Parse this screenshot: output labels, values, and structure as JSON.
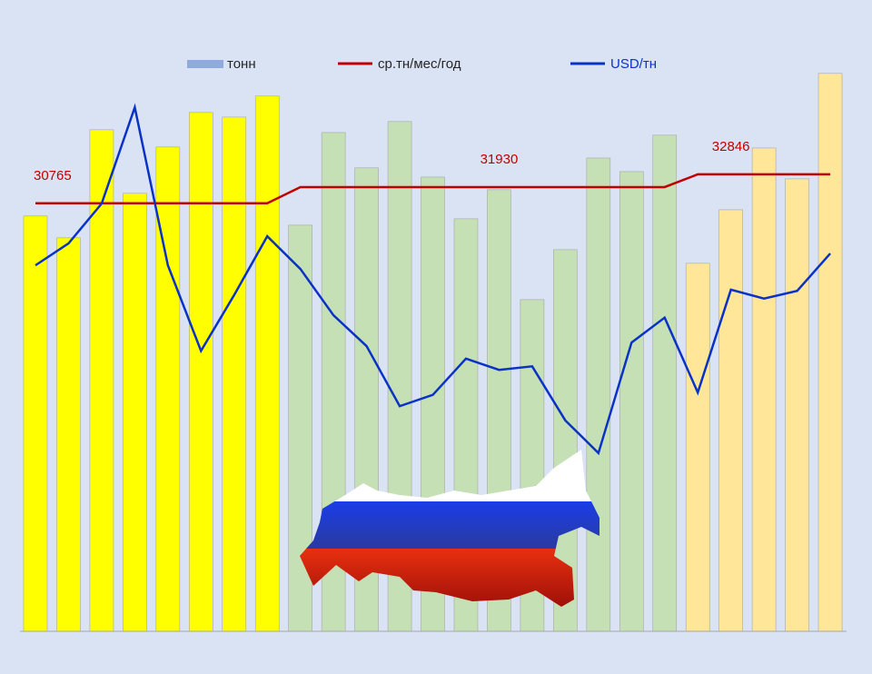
{
  "chart_data": {
    "type": "bar",
    "ylim": [
      0,
      42700
    ],
    "y2lim": [
      0,
      100
    ],
    "legend": "top",
    "series": [
      {
        "name": "тонн",
        "type": "bar",
        "color": "#8faadc",
        "colors": [
          "#ffff00",
          "#ffff00",
          "#ffff00",
          "#ffff00",
          "#ffff00",
          "#ffff00",
          "#ffff00",
          "#ffff00",
          "#c5e0b4",
          "#c5e0b4",
          "#c5e0b4",
          "#c5e0b4",
          "#c5e0b4",
          "#c5e0b4",
          "#c5e0b4",
          "#c5e0b4",
          "#c5e0b4",
          "#c5e0b4",
          "#c5e0b4",
          "#c5e0b4",
          "#ffe699",
          "#ffe699",
          "#ffe699",
          "#ffe699",
          "#ffe699"
        ],
        "values": [
          29850,
          28280,
          36050,
          31480,
          34810,
          37290,
          36960,
          38470,
          29190,
          35850,
          33310,
          36640,
          32650,
          29650,
          31740,
          23840,
          27430,
          34020,
          33040,
          35660,
          26450,
          30300,
          34740,
          32520,
          40100
        ]
      },
      {
        "name": "ср.тн/мес/год",
        "type": "line",
        "color": "#c00000",
        "values": [
          30765,
          30765,
          30765,
          30765,
          30765,
          30765,
          30765,
          30765,
          31930,
          31930,
          31930,
          31930,
          31930,
          31930,
          31930,
          31930,
          31930,
          31930,
          31930,
          31930,
          32846,
          32846,
          32846,
          32846,
          32846
        ]
      },
      {
        "name": "USD/тн",
        "type": "line",
        "axis": "y2",
        "color": "#0a32c8",
        "values": [
          61.6,
          65.3,
          72.0,
          88.2,
          61.6,
          47.2,
          56.6,
          66.5,
          61.0,
          53.2,
          48.0,
          37.9,
          39.8,
          45.9,
          44.0,
          44.6,
          35.5,
          30.0,
          48.6,
          52.8,
          40.2,
          57.5,
          56.0,
          57.3,
          63.6
        ]
      }
    ]
  }
}
